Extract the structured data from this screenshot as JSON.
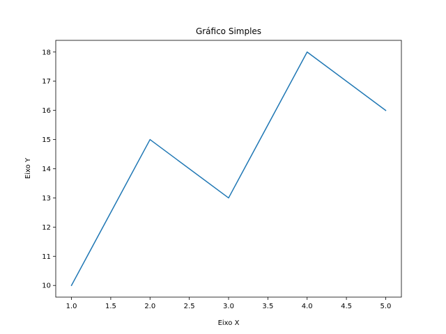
{
  "chart_data": {
    "type": "line",
    "title": "Gráfico Simples",
    "xlabel": "Eixo X",
    "ylabel": "Eixo Y",
    "x": [
      1,
      2,
      3,
      4,
      5
    ],
    "series": [
      {
        "values": [
          10,
          15,
          13,
          18,
          16
        ],
        "color": "#1f77b4"
      }
    ],
    "xlim": [
      0.8,
      5.2
    ],
    "ylim": [
      9.6,
      18.4
    ],
    "xticks": [
      "1.0",
      "1.5",
      "2.0",
      "2.5",
      "3.0",
      "3.5",
      "4.0",
      "4.5",
      "5.0"
    ],
    "yticks": [
      "10",
      "11",
      "12",
      "13",
      "14",
      "15",
      "16",
      "17",
      "18"
    ],
    "grid": false,
    "legend": false
  }
}
